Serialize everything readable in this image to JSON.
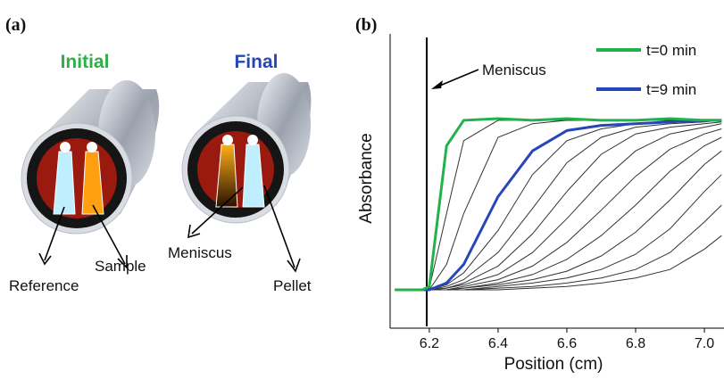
{
  "panel_a": {
    "label": "(a)",
    "initial": "Initial",
    "final": "Final",
    "reference": "Reference",
    "sample": "Sample",
    "meniscus": "Meniscus",
    "pellet": "Pellet"
  },
  "chart_data": {
    "type": "line",
    "panel_label": "(b)",
    "xlabel": "Position (cm)",
    "ylabel": "Absorbance",
    "annotation": "Meniscus",
    "x": [
      6.1,
      6.18,
      6.2,
      6.25,
      6.3,
      6.4,
      6.5,
      6.6,
      6.7,
      6.8,
      6.9,
      7.0,
      7.05
    ],
    "xlim": [
      6.086,
      7.057
    ],
    "xticks": [
      6.2,
      6.4,
      6.6,
      6.8,
      {
        "value": 7.0,
        "label": "7.0"
      }
    ],
    "ylim": [
      -0.226,
      1.51
    ],
    "series": [
      {
        "name": "t=0 min",
        "color": "#22b24c",
        "values": [
          0,
          0,
          0.02,
          0.85,
          1.0,
          1.01,
          1.0,
          1.01,
          1.0,
          1.0,
          1.01,
          1.0,
          1.0
        ]
      },
      {
        "name": "t=9 min",
        "color": "#2747b8",
        "values": [
          0,
          0,
          0,
          0.04,
          0.15,
          0.55,
          0.82,
          0.94,
          0.97,
          0.98,
          0.99,
          1.0,
          1.0
        ]
      },
      {
        "color": "#333333",
        "values": [
          0,
          0,
          0.01,
          0.45,
          0.88,
          1,
          1,
          1,
          1,
          1,
          1,
          1,
          1
        ]
      },
      {
        "color": "#333333",
        "values": [
          0,
          0,
          0,
          0.15,
          0.45,
          0.9,
          0.98,
          1,
          1,
          1,
          1,
          1,
          1
        ]
      },
      {
        "color": "#333333",
        "values": [
          0,
          0,
          0,
          0.03,
          0.1,
          0.35,
          0.68,
          0.88,
          0.95,
          0.98,
          0.99,
          1,
          1
        ]
      },
      {
        "color": "#333333",
        "values": [
          0,
          0,
          0,
          0.02,
          0.06,
          0.22,
          0.48,
          0.75,
          0.9,
          0.96,
          0.98,
          0.99,
          1
        ]
      },
      {
        "color": "#333333",
        "values": [
          0,
          0,
          0,
          0.01,
          0.04,
          0.14,
          0.33,
          0.58,
          0.8,
          0.92,
          0.96,
          0.98,
          0.99
        ]
      },
      {
        "color": "#333333",
        "values": [
          0,
          0,
          0,
          0.01,
          0.03,
          0.09,
          0.22,
          0.42,
          0.64,
          0.82,
          0.92,
          0.96,
          0.98
        ]
      },
      {
        "color": "#333333",
        "values": [
          0,
          0,
          0,
          0,
          0.02,
          0.06,
          0.14,
          0.28,
          0.47,
          0.67,
          0.83,
          0.92,
          0.95
        ]
      },
      {
        "color": "#333333",
        "values": [
          0,
          0,
          0,
          0,
          0.01,
          0.04,
          0.09,
          0.18,
          0.32,
          0.5,
          0.7,
          0.85,
          0.9
        ]
      },
      {
        "color": "#333333",
        "values": [
          0,
          0,
          0,
          0,
          0.01,
          0.03,
          0.06,
          0.11,
          0.2,
          0.34,
          0.53,
          0.74,
          0.82
        ]
      },
      {
        "color": "#333333",
        "values": [
          0,
          0,
          0,
          0,
          0,
          0.02,
          0.04,
          0.07,
          0.12,
          0.21,
          0.36,
          0.58,
          0.68
        ]
      },
      {
        "color": "#333333",
        "values": [
          0,
          0,
          0,
          0,
          0,
          0.01,
          0.02,
          0.04,
          0.07,
          0.12,
          0.22,
          0.4,
          0.5
        ]
      },
      {
        "color": "#333333",
        "values": [
          0,
          0,
          0,
          0,
          0,
          0,
          0.01,
          0.02,
          0.04,
          0.07,
          0.12,
          0.24,
          0.32
        ]
      }
    ]
  }
}
